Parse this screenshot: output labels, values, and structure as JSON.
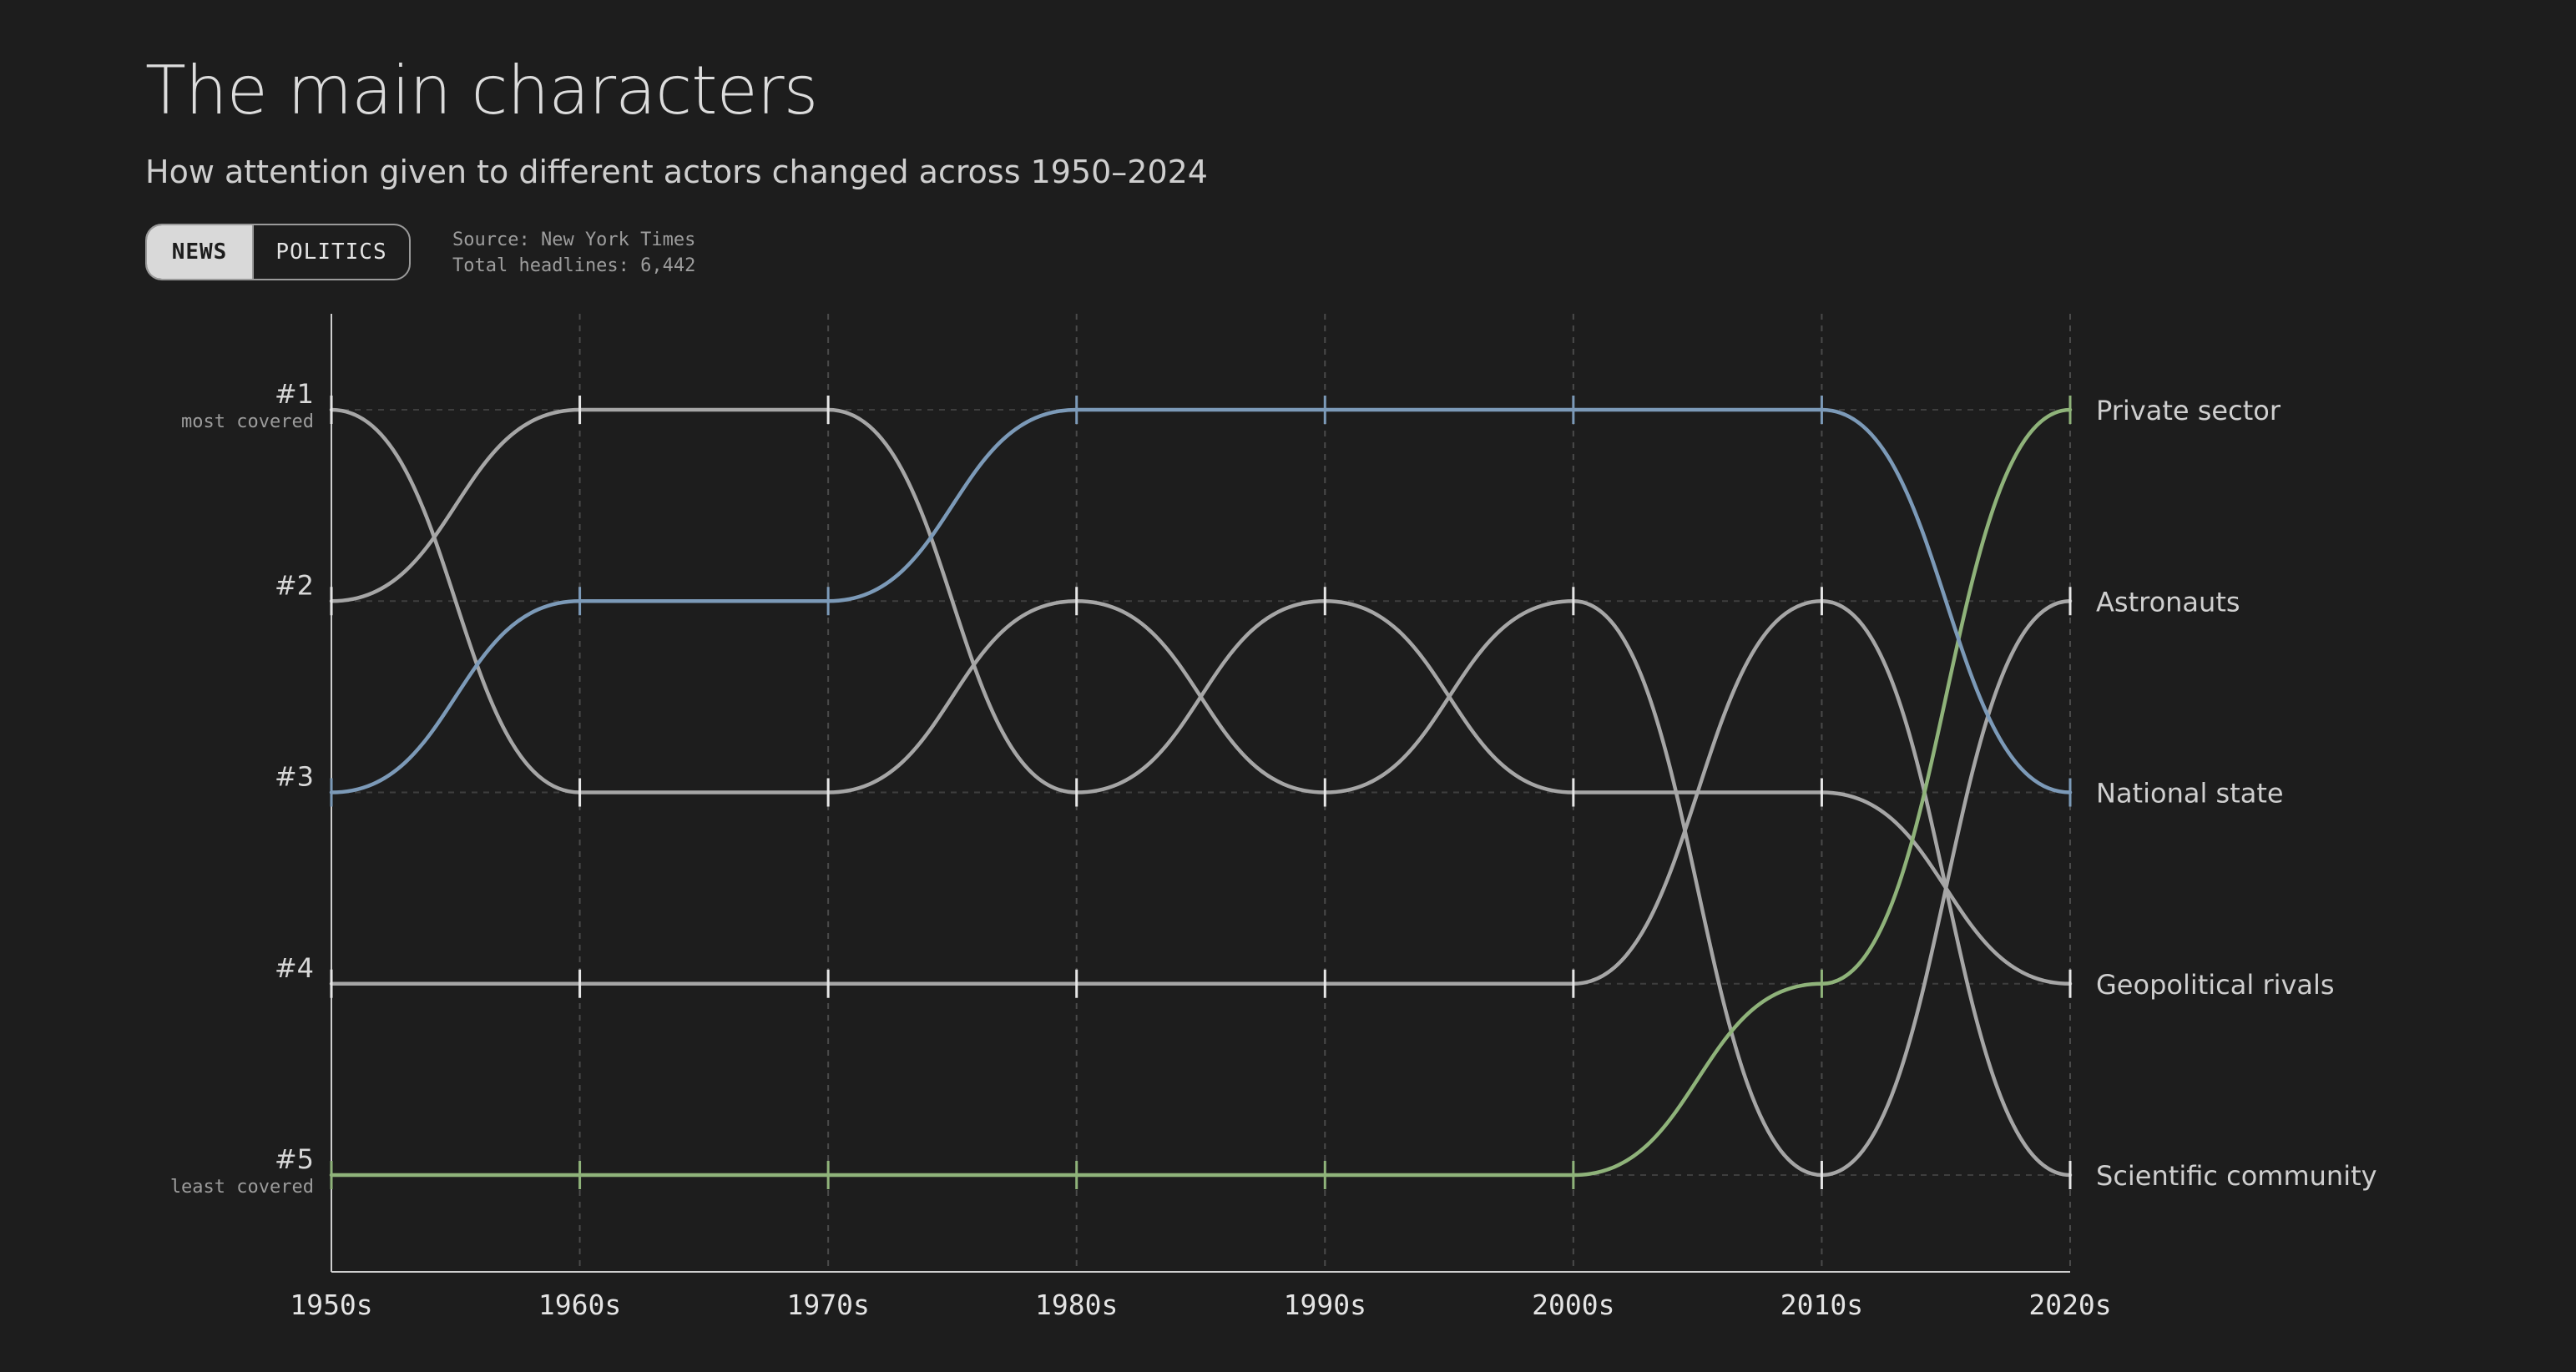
{
  "header": {
    "title": "The main characters",
    "subtitle": "How attention given to different actors changed across 1950–2024"
  },
  "toggle": {
    "options": [
      "NEWS",
      "POLITICS"
    ],
    "selected": "NEWS"
  },
  "meta": {
    "source": "Source: New York Times",
    "total": "Total headlines: 6,442"
  },
  "chart_data": {
    "type": "line",
    "title": "The main characters",
    "subtitle": "How attention given to different actors changed across 1950–2024",
    "x": [
      "1950s",
      "1960s",
      "1970s",
      "1980s",
      "1990s",
      "2000s",
      "2010s",
      "2020s"
    ],
    "y_ticks": [
      {
        "rank": 1,
        "label": "#1",
        "sublabel": "most covered"
      },
      {
        "rank": 2,
        "label": "#2",
        "sublabel": ""
      },
      {
        "rank": 3,
        "label": "#3",
        "sublabel": ""
      },
      {
        "rank": 4,
        "label": "#4",
        "sublabel": ""
      },
      {
        "rank": 5,
        "label": "#5",
        "sublabel": "least covered"
      }
    ],
    "ylim": [
      1,
      5
    ],
    "y_inverted": true,
    "grid": true,
    "legend": "end-labels-right",
    "series": [
      {
        "name": "Private sector",
        "values": [
          5,
          5,
          5,
          5,
          5,
          5,
          4,
          1
        ],
        "color": "#8fb37a"
      },
      {
        "name": "Astronauts",
        "values": [
          1,
          3,
          3,
          2,
          3,
          2,
          5,
          2
        ],
        "color": "#a6a6a6"
      },
      {
        "name": "National state",
        "values": [
          3,
          2,
          2,
          1,
          1,
          1,
          1,
          3
        ],
        "color": "#7c9ab8"
      },
      {
        "name": "Geopolitical rivals",
        "values": [
          2,
          1,
          1,
          3,
          2,
          3,
          3,
          4
        ],
        "color": "#a6a6a6"
      },
      {
        "name": "Scientific community",
        "values": [
          4,
          4,
          4,
          4,
          4,
          4,
          2,
          5
        ],
        "color": "#a6a6a6"
      }
    ]
  }
}
